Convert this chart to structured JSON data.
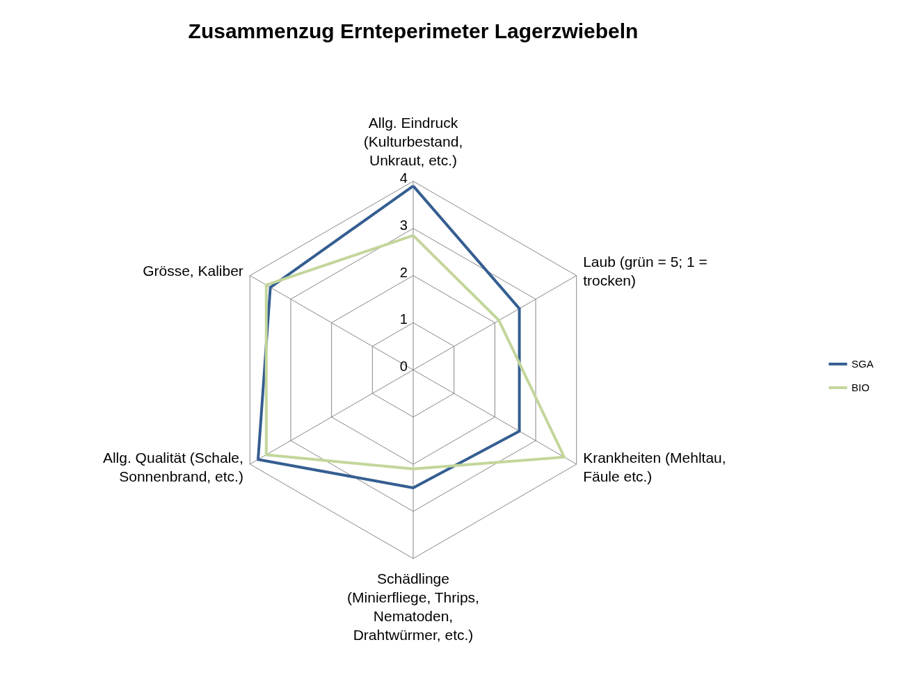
{
  "chart_data": {
    "type": "radar",
    "title": "Zusammenzug  Ernteperimeter Lagerzwiebeln",
    "categories": [
      "Allg. Eindruck (Kulturbestand, Unkraut, etc.)",
      "Laub (grün = 5; 1 = trocken)",
      "Krankheiten (Mehltau, Fäule etc.)",
      "Schädlinge (Minierfliege, Thrips, Nematoden, Drahtwürmer, etc.)",
      "Allg. Qualität (Schale, Sonnenbrand, etc.)",
      "Grösse, Kaliber"
    ],
    "series": [
      {
        "name": "SGA",
        "color": "#355e91",
        "values": [
          3.9,
          2.6,
          2.6,
          2.5,
          3.8,
          3.5
        ]
      },
      {
        "name": "BIO",
        "color": "#c3d69b",
        "values": [
          2.85,
          2.1,
          3.7,
          2.1,
          3.6,
          3.6
        ]
      }
    ],
    "ylim": [
      0,
      4
    ],
    "yticks": [
      0,
      1,
      2,
      3,
      4
    ],
    "grid": true,
    "legend": "right"
  }
}
